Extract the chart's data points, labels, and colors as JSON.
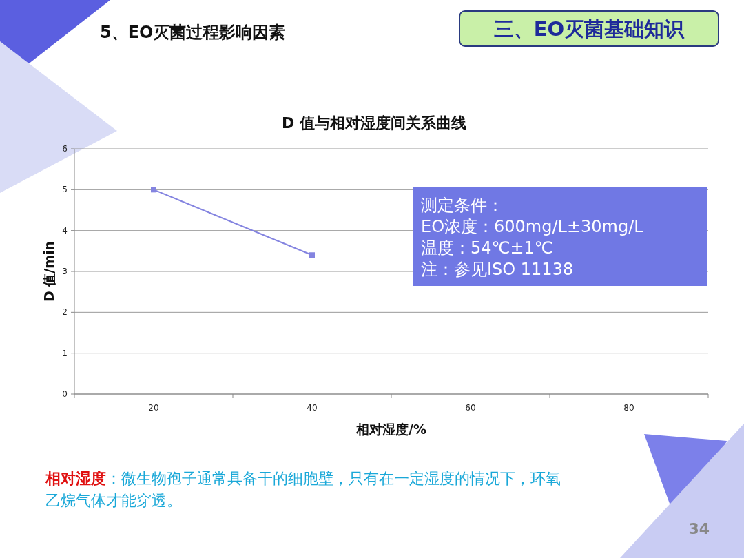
{
  "chart_data": {
    "type": "line",
    "title": "D 值与相对湿度间关系曲线",
    "xlabel": "相对湿度/%",
    "ylabel": "D 值/min",
    "categories": [
      "20",
      "40",
      "60",
      "80"
    ],
    "series": [
      {
        "color": "#8484e0",
        "values": [
          5,
          3.4,
          null,
          null
        ]
      }
    ],
    "ylim": [
      0,
      6
    ],
    "yticks": [
      0,
      1,
      2,
      3,
      4,
      5,
      6
    ],
    "grid": "y",
    "marker": "square",
    "line_style": "solid",
    "annotations": [
      "5、EO灭菌过程影响因素",
      "三、EO灭菌基础知识",
      "测定条件：",
      "EO浓度：600mg/L±30mg/L",
      "温度：54℃±1℃",
      "注：参见ISO 11138",
      "**相对湿度**：微生物孢子通常具备干的细胞壁，只有在一定湿度的情况下，环氧乙烷气体才能穿透。",
      "34"
    ]
  }
}
